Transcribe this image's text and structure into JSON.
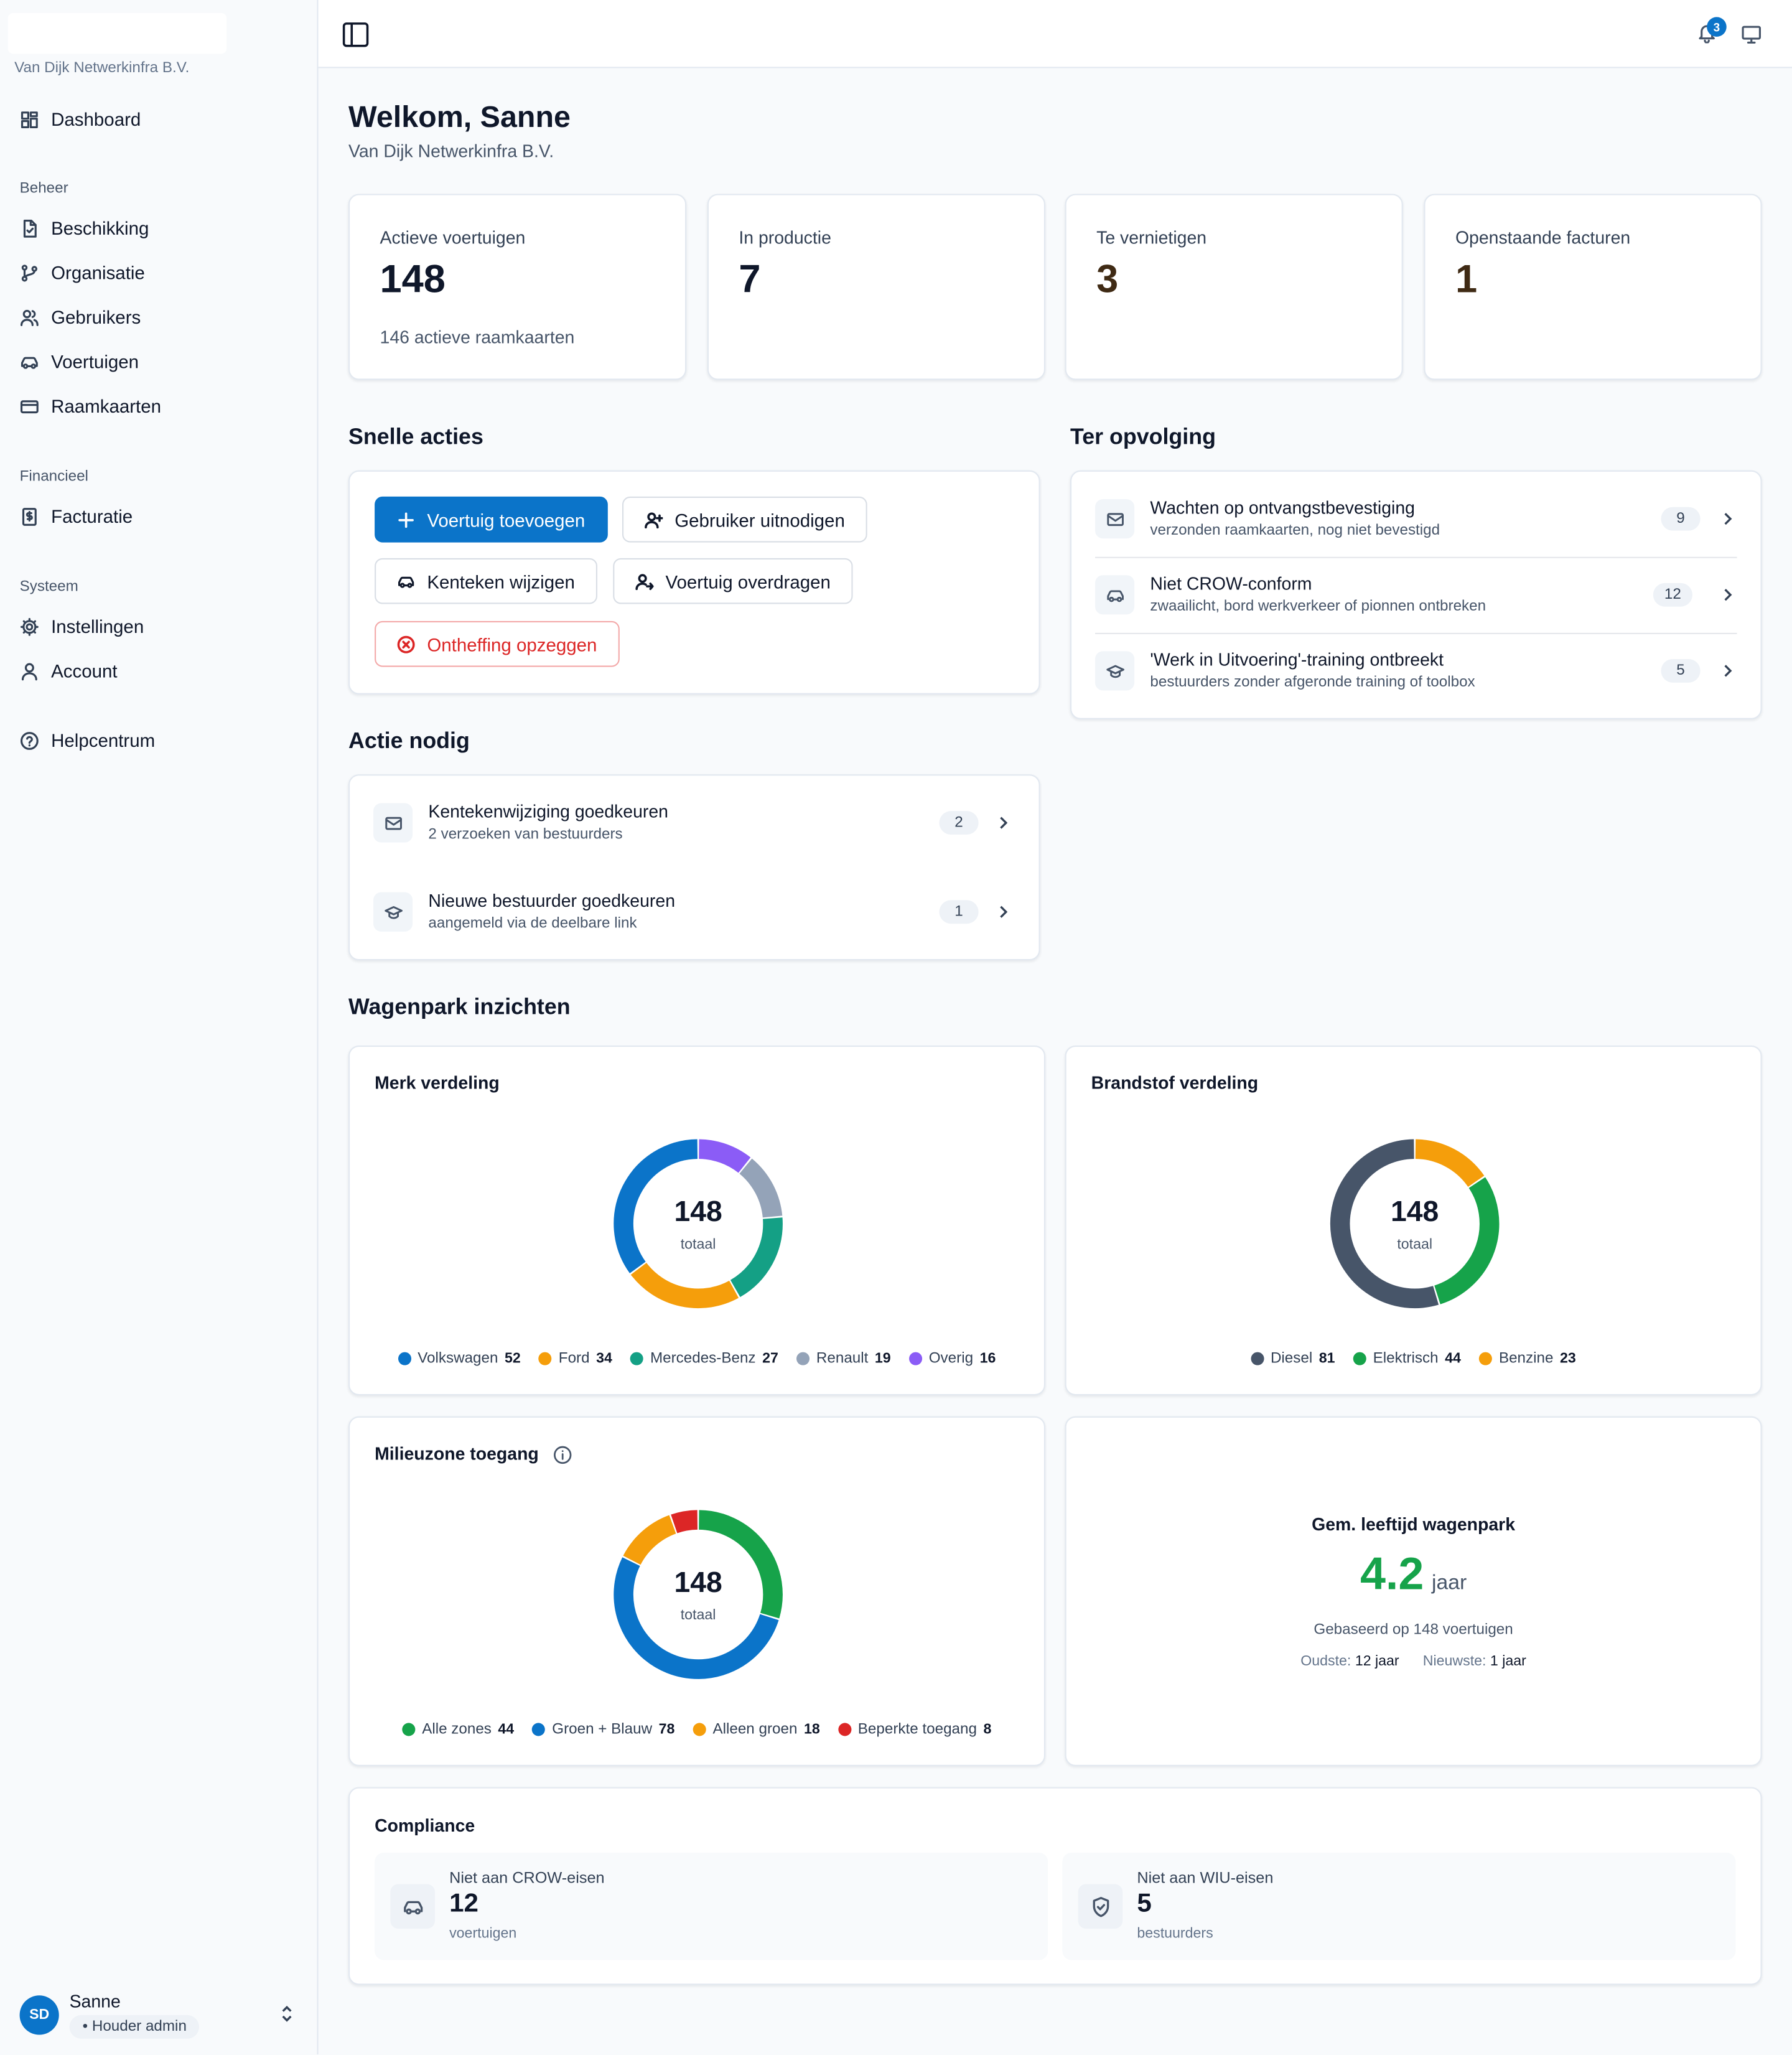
{
  "app": {
    "org_name": "Van Dijk Netwerkinfra B.V.",
    "notifications_count": "3"
  },
  "sidebar": {
    "dashboard": "Dashboard",
    "sections": {
      "beheer": "Beheer",
      "financieel": "Financieel",
      "systeem": "Systeem"
    },
    "items": {
      "beschikking": "Beschikking",
      "organisatie": "Organisatie",
      "gebruikers": "Gebruikers",
      "voertuigen": "Voertuigen",
      "raamkaarten": "Raamkaarten",
      "facturatie": "Facturatie",
      "instellingen": "Instellingen",
      "account": "Account",
      "helpcentrum": "Helpcentrum"
    },
    "user": {
      "initials": "SD",
      "name": "Sanne",
      "role": "• Houder admin"
    }
  },
  "header": {
    "title": "Welkom, Sanne",
    "subtitle": "Van Dijk Netwerkinfra B.V."
  },
  "stats": [
    {
      "label": "Actieve voertuigen",
      "value": "148",
      "sub": "146 actieve raamkaarten",
      "color": "#0f172a"
    },
    {
      "label": "In productie",
      "value": "7",
      "color": "#0f172a"
    },
    {
      "label": "Te vernietigen",
      "value": "3",
      "color": "#3f2a14"
    },
    {
      "label": "Openstaande facturen",
      "value": "1",
      "color": "#3f2a14"
    }
  ],
  "quick_actions": {
    "title": "Snelle acties",
    "add_vehicle": "Voertuig toevoegen",
    "invite_user": "Gebruiker uitnodigen",
    "change_plate": "Kenteken wijzigen",
    "transfer_vehicle": "Voertuig overdragen",
    "cancel_exemption": "Ontheffing opzeggen"
  },
  "follow_up": {
    "title": "Ter opvolging",
    "items": [
      {
        "title": "Wachten op ontvangstbevestiging",
        "desc": "verzonden raamkaarten, nog niet bevestigd",
        "count": "9",
        "icon": "mail-icon"
      },
      {
        "title": "Niet CROW-conform",
        "desc": "zwaailicht, bord werkverkeer of pionnen ontbreken",
        "count": "12",
        "icon": "car-icon"
      },
      {
        "title": "'Werk in Uitvoering'-training ontbreekt",
        "desc": "bestuurders zonder afgeronde training of toolbox",
        "count": "5",
        "icon": "graduation-cap-icon"
      }
    ]
  },
  "action_needed": {
    "title": "Actie nodig",
    "items": [
      {
        "title": "Kentekenwijziging goedkeuren",
        "desc": "2 verzoeken van bestuurders",
        "count": "2",
        "icon": "mail-icon"
      },
      {
        "title": "Nieuwe bestuurder goedkeuren",
        "desc": "aangemeld via de deelbare link",
        "count": "1",
        "icon": "graduation-cap-icon"
      }
    ]
  },
  "insights": {
    "title": "Wagenpark inzichten",
    "total_sub": "totaal",
    "age": {
      "title": "Gem. leeftijd wagenpark",
      "value": "4.2",
      "unit": "jaar",
      "basis": "Gebaseerd op 148 voertuigen",
      "oldest_label": "Oudste:",
      "oldest": "12 jaar",
      "newest_label": "Nieuwste:",
      "newest": "1 jaar"
    }
  },
  "chart_data": [
    {
      "type": "pie",
      "title": "Merk verdeling",
      "total": "148",
      "categories": [
        "Volkswagen",
        "Ford",
        "Mercedes-Benz",
        "Renault",
        "Overig"
      ],
      "values": [
        52,
        34,
        27,
        19,
        16
      ],
      "colors": [
        "#0b74c9",
        "#f59e0b",
        "#14a085",
        "#94a3b8",
        "#8b5cf6"
      ],
      "start_angle": 0,
      "direction": "ccw"
    },
    {
      "type": "pie",
      "title": "Brandstof verdeling",
      "total": "148",
      "categories": [
        "Diesel",
        "Elektrisch",
        "Benzine"
      ],
      "values": [
        81,
        44,
        23
      ],
      "colors": [
        "#475569",
        "#16a34a",
        "#f59e0b"
      ],
      "start_angle": 0,
      "direction": "ccw"
    },
    {
      "type": "pie",
      "title": "Milieuzone toegang",
      "total": "148",
      "categories": [
        "Alle zones",
        "Groen + Blauw",
        "Alleen groen",
        "Beperkte toegang"
      ],
      "values": [
        44,
        78,
        18,
        8
      ],
      "colors": [
        "#16a34a",
        "#0b74c9",
        "#f59e0b",
        "#dc2626"
      ],
      "start_angle": 0,
      "direction": "cw"
    }
  ],
  "compliance": {
    "title": "Compliance",
    "crow": {
      "label": "Niet aan CROW-eisen",
      "value": "12",
      "unit": "voertuigen"
    },
    "wiu": {
      "label": "Niet aan WIU-eisen",
      "value": "5",
      "unit": "bestuurders"
    }
  }
}
